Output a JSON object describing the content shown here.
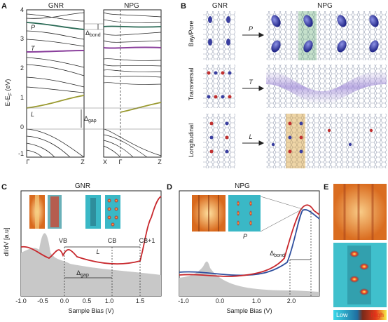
{
  "panel_a": {
    "letter": "A",
    "left_title": "GNR",
    "right_title": "NPG",
    "y_axis_label": "E-E",
    "y_axis_sub": "F",
    "y_axis_unit": " (eV)",
    "y_ticks": [
      "4",
      "3",
      "2",
      "1",
      "0",
      "-1"
    ],
    "left_x_ticks": [
      "Γ",
      "Z"
    ],
    "right_x_ticks": [
      "X",
      "Γ",
      "Z"
    ],
    "band_labels": {
      "P": "P",
      "T": "T",
      "L": "L"
    },
    "delta_bond": {
      "symbol": "Δ",
      "sub": "bond"
    },
    "delta_gap": {
      "symbol": "Δ",
      "sub": "gap"
    }
  },
  "panel_b": {
    "letter": "B",
    "left_title": "GNR",
    "right_title": "NPG",
    "rows": [
      {
        "label": "Bay/Pore",
        "arrow": "P"
      },
      {
        "label": "Transversal",
        "arrow": "T"
      },
      {
        "label": "Longitudinal",
        "arrow": "L"
      }
    ]
  },
  "panel_c": {
    "letter": "C",
    "title": "GNR",
    "y_axis_label": "dI/dV [a.u]",
    "x_axis_label": "Sample Bias (V)",
    "x_ticks": [
      "-1.0",
      "-0.5",
      "0.0",
      "0.5",
      "1.0",
      "1.5"
    ],
    "annotations": {
      "vb": "VB",
      "cb": "CB",
      "cb1": "CB+1",
      "L": "L",
      "gap_symbol": "Δ",
      "gap_sub": "gap"
    }
  },
  "panel_d": {
    "letter": "D",
    "title": "NPG",
    "x_axis_label": "Sample Bias (V)",
    "x_ticks": [
      "-1.0",
      "0.0",
      "1.0",
      "2.0"
    ],
    "annotations": {
      "P": "P",
      "bond_symbol": "Δ",
      "bond_sub": "bond"
    }
  },
  "panel_e": {
    "letter": "E",
    "colorbar_low": "Low",
    "colorbar_high": "High"
  },
  "colors": {
    "red": "#c8282d",
    "blue": "#2f4f9e",
    "purple": "#8a3f9c",
    "olive": "#9a9a30",
    "green": "#2a6a55",
    "gray_fill": "#c8c8c8"
  }
}
